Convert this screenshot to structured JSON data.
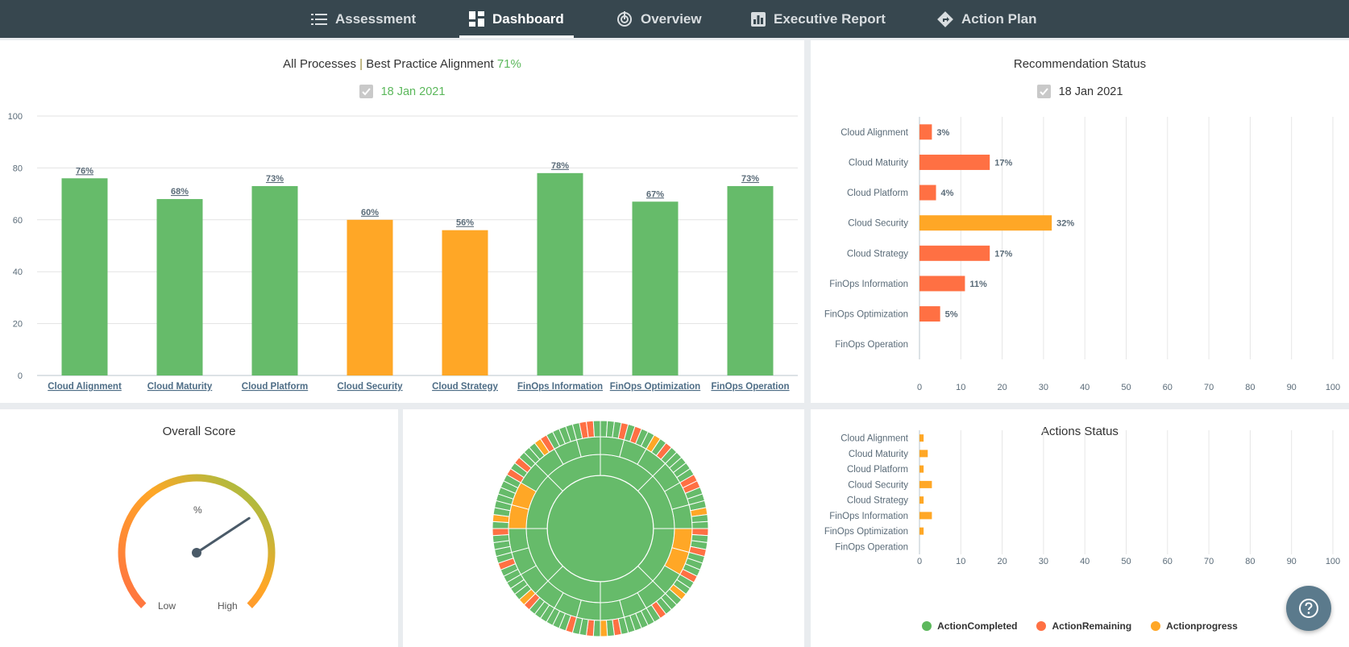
{
  "nav": {
    "tabs": [
      {
        "label": "Assessment",
        "icon": "list-icon",
        "active": false
      },
      {
        "label": "Dashboard",
        "icon": "dashboard-icon",
        "active": true
      },
      {
        "label": "Overview",
        "icon": "radar-icon",
        "active": false
      },
      {
        "label": "Executive Report",
        "icon": "report-chart-icon",
        "active": false
      },
      {
        "label": "Action Plan",
        "icon": "directions-icon",
        "active": false
      }
    ]
  },
  "alignment": {
    "title_prefix": "All Processes",
    "title_sep": "|",
    "title_main": "Best Practice Alignment",
    "title_pct": "71%",
    "date": "18 Jan 2021",
    "date_checked": true
  },
  "recommendation": {
    "title": "Recommendation Status",
    "date": "18 Jan 2021",
    "date_checked": true
  },
  "overall": {
    "title": "Overall Score",
    "unit": "%",
    "low_label": "Low",
    "high_label": "High"
  },
  "actions": {
    "title": "Actions Status",
    "legend": [
      {
        "label": "ActionCompleted",
        "color": "#5cb85c"
      },
      {
        "label": "ActionRemaining",
        "color": "#ff7043"
      },
      {
        "label": "Actionprogress",
        "color": "#ffa726"
      }
    ]
  },
  "colors": {
    "green": "#66bb6a",
    "orange": "#ffa726",
    "red": "#ff7043",
    "nav_bg": "#37474f"
  },
  "chart_data": [
    {
      "type": "bar",
      "title": "All Processes | Best Practice Alignment 71%",
      "categories": [
        "Cloud Alignment",
        "Cloud Maturity",
        "Cloud Platform",
        "Cloud Security",
        "Cloud Strategy",
        "FinOps Information",
        "FinOps Optimization",
        "FinOps Operation"
      ],
      "values": [
        76,
        68,
        73,
        60,
        56,
        78,
        67,
        73
      ],
      "labels": [
        "76%",
        "68%",
        "73%",
        "60%",
        "56%",
        "78%",
        "67%",
        "73%"
      ],
      "colors": [
        "#66bb6a",
        "#66bb6a",
        "#66bb6a",
        "#ffa726",
        "#ffa726",
        "#66bb6a",
        "#66bb6a",
        "#66bb6a"
      ],
      "ylim": [
        0,
        100
      ],
      "yticks": [
        0,
        20,
        40,
        60,
        80,
        100
      ],
      "grid": true
    },
    {
      "type": "bar",
      "orientation": "horizontal",
      "title": "Recommendation Status",
      "categories": [
        "Cloud Alignment",
        "Cloud Maturity",
        "Cloud Platform",
        "Cloud Security",
        "Cloud Strategy",
        "FinOps Information",
        "FinOps Optimization",
        "FinOps Operation"
      ],
      "values": [
        3,
        17,
        4,
        32,
        17,
        11,
        5,
        null
      ],
      "labels": [
        "3%",
        "17%",
        "4%",
        "32%",
        "17%",
        "11%",
        "5%",
        ""
      ],
      "colors": [
        "#ff7043",
        "#ff7043",
        "#ff7043",
        "#ffa726",
        "#ff7043",
        "#ff7043",
        "#ff7043",
        "#ff7043"
      ],
      "xlim": [
        0,
        100
      ],
      "xticks": [
        0,
        10,
        20,
        30,
        40,
        50,
        60,
        70,
        80,
        90,
        100
      ],
      "grid": true
    },
    {
      "type": "bar",
      "orientation": "horizontal",
      "title": "Actions Status",
      "categories": [
        "Cloud Alignment",
        "Cloud Maturity",
        "Cloud Platform",
        "Cloud Security",
        "Cloud Strategy",
        "FinOps Information",
        "FinOps Optimization",
        "FinOps Operation"
      ],
      "series": [
        {
          "name": "ActionCompleted",
          "values": [
            0,
            0,
            0,
            0,
            0,
            0,
            0,
            0
          ]
        },
        {
          "name": "ActionRemaining",
          "values": [
            0,
            0,
            0,
            0,
            0,
            0,
            0,
            0
          ]
        },
        {
          "name": "Actionprogress",
          "values": [
            1,
            2,
            1,
            3,
            1,
            3,
            1,
            0
          ]
        }
      ],
      "xlim": [
        0,
        100
      ],
      "xticks": [
        0,
        10,
        20,
        30,
        40,
        50,
        60,
        70,
        80,
        90,
        100
      ],
      "legend": "bottom",
      "grid": true
    },
    {
      "type": "gauge",
      "title": "Overall Score",
      "value": 71,
      "range": [
        0,
        100
      ]
    }
  ]
}
